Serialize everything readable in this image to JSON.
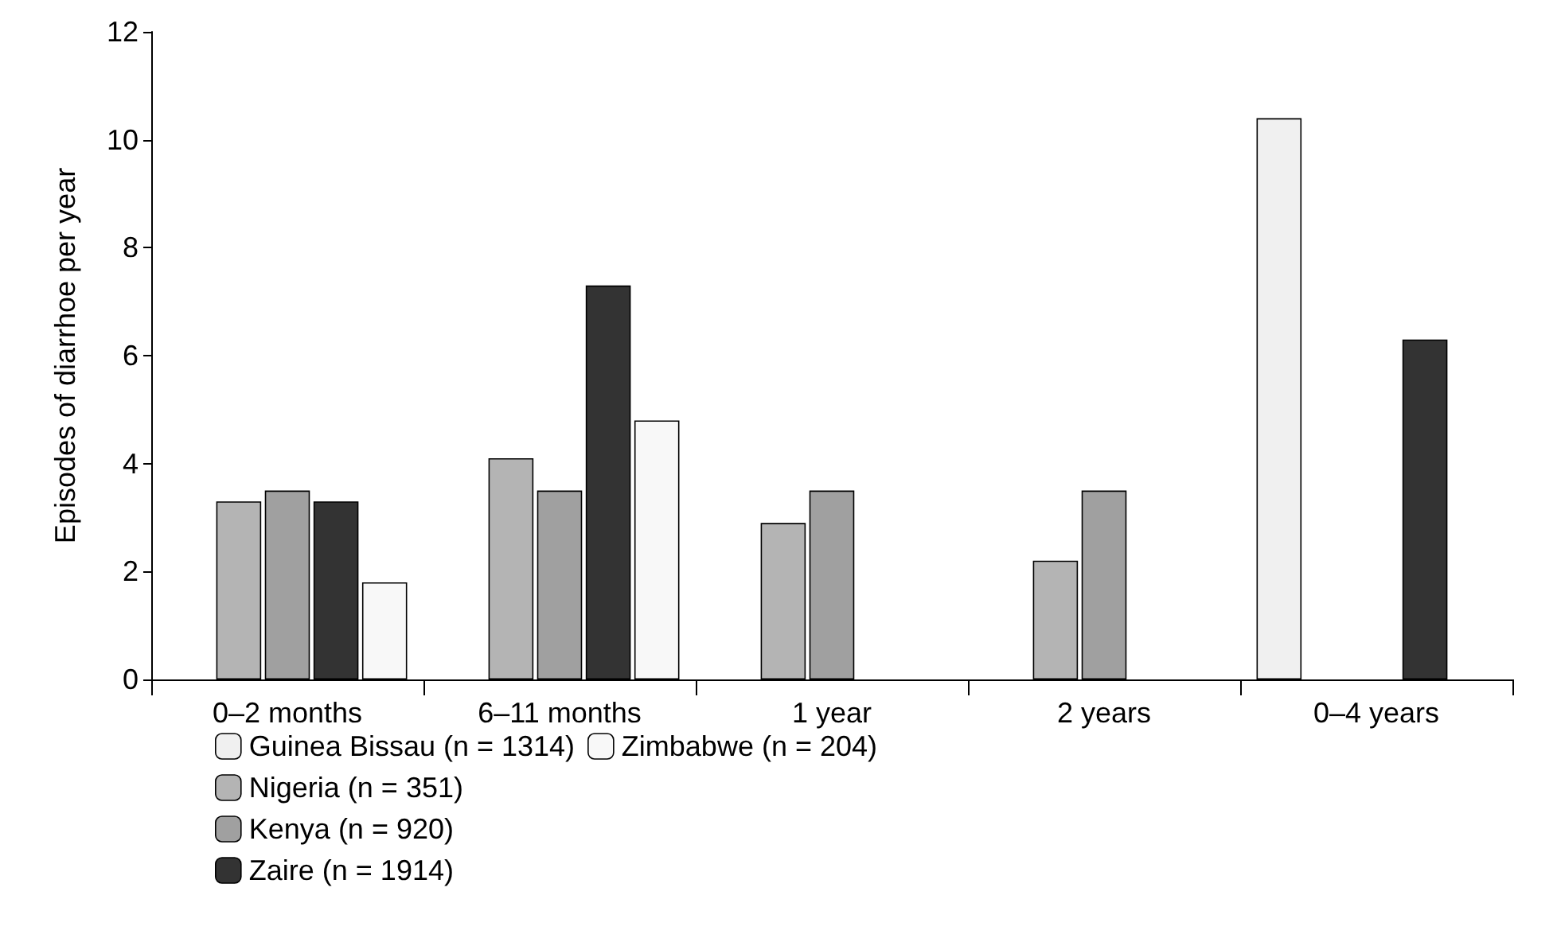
{
  "chart_data": {
    "type": "bar",
    "ylabel": "Episodes of diarrhoe per year",
    "categories": [
      "0–2 months",
      "6–11 months",
      "1 year",
      "2 years",
      "0–4 years"
    ],
    "series": [
      {
        "name": "Guinea Bissau (n = 1314)",
        "color": "#f0f0f0",
        "values": [
          null,
          null,
          null,
          null,
          10.4
        ]
      },
      {
        "name": "Nigeria (n = 351)",
        "color": "#b4b4b4",
        "values": [
          3.3,
          4.1,
          2.9,
          2.2,
          null
        ]
      },
      {
        "name": "Kenya (n = 920)",
        "color": "#a0a0a0",
        "values": [
          3.5,
          3.5,
          3.5,
          3.5,
          null
        ]
      },
      {
        "name": "Zaire (n = 1914)",
        "color": "#333333",
        "values": [
          3.3,
          7.3,
          null,
          null,
          6.3
        ]
      },
      {
        "name": "Zimbabwe (n = 204)",
        "color": "#f8f8f8",
        "values": [
          1.8,
          4.8,
          null,
          null,
          null
        ]
      }
    ],
    "ylim": [
      0,
      12
    ],
    "yticks": [
      0,
      2,
      4,
      6,
      8,
      10,
      12
    ],
    "grid": false,
    "legend": "bottom"
  }
}
